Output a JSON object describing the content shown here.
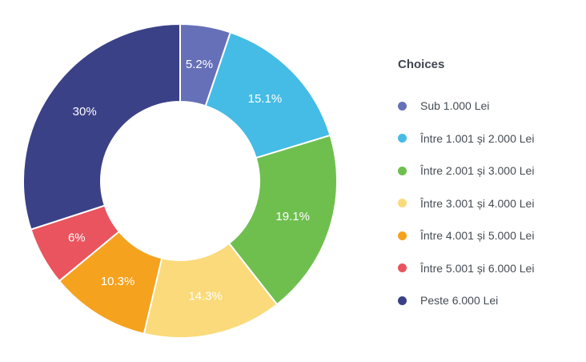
{
  "page": {
    "background": "#ffffff"
  },
  "chart_data": {
    "type": "pie",
    "variant": "donut",
    "legend_title": "Choices",
    "legend_position": "right",
    "labels": [
      "Sub 1.000 Lei",
      "Între 1.001 și 2.000 Lei",
      "Între 2.001 și 3.000 Lei",
      "Între 3.001 și 4.000 Lei",
      "Între 4.001 și 5.000 Lei",
      "Între 5.001 și 6.000 Lei",
      "Peste 6.000 Lei"
    ],
    "values": [
      5.2,
      15.1,
      19.1,
      14.3,
      10.3,
      6,
      30
    ],
    "value_labels": [
      "5.2%",
      "15.1%",
      "19.1%",
      "14.3%",
      "10.3%",
      "6%",
      "30%"
    ],
    "colors": [
      "#6670B8",
      "#45BCE5",
      "#6FBF4F",
      "#FBDA7B",
      "#F5A21F",
      "#E9545E",
      "#3B4187"
    ],
    "inner_radius_ratio": 0.505,
    "start_angle_deg": 0,
    "slice_gap_color": "#ffffff",
    "label_color": "#ffffff"
  }
}
